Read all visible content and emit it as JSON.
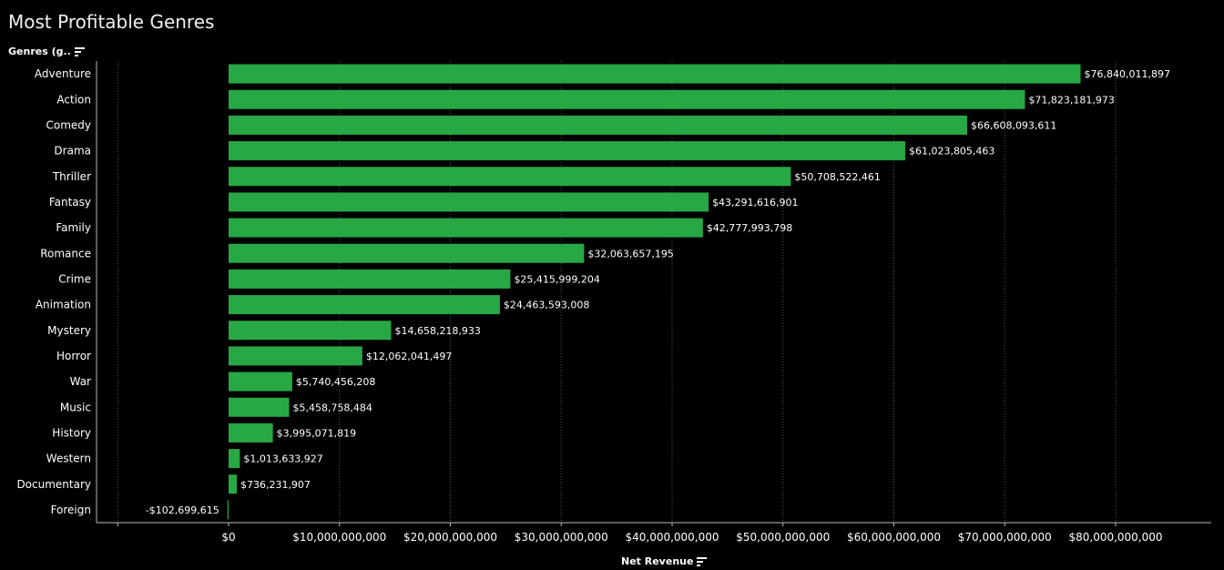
{
  "title": "Most Profitable Genres",
  "y_header": "Genres (g..",
  "x_header": "Net Revenue",
  "colors": {
    "bar": "#28a745",
    "background": "#000000",
    "grid": "#555555",
    "text": "#ffffff"
  },
  "chart_data": {
    "type": "bar",
    "orientation": "horizontal",
    "title": "Most Profitable Genres",
    "xlabel": "Net Revenue",
    "ylabel": "Genres (g..",
    "xlim": [
      -10000000000,
      88000000000
    ],
    "grid": true,
    "categories": [
      "Adventure",
      "Action",
      "Comedy",
      "Drama",
      "Thriller",
      "Fantasy",
      "Family",
      "Romance",
      "Crime",
      "Animation",
      "Mystery",
      "Horror",
      "War",
      "Music",
      "History",
      "Western",
      "Documentary",
      "Foreign"
    ],
    "values": [
      76840011897,
      71823181973,
      66608093611,
      61023805463,
      50708522461,
      43291616901,
      42777993798,
      32063657195,
      25415999204,
      24463593008,
      14658218933,
      12062041497,
      5740456208,
      5458758484,
      3995071819,
      1013633927,
      736231907,
      -102699615
    ],
    "data_labels": [
      "$76,840,011,897",
      "$71,823,181,973",
      "$66,608,093,611",
      "$61,023,805,463",
      "$50,708,522,461",
      "$43,291,616,901",
      "$42,777,993,798",
      "$32,063,657,195",
      "$25,415,999,204",
      "$24,463,593,008",
      "$14,658,218,933",
      "$12,062,041,497",
      "$5,740,456,208",
      "$5,458,758,484",
      "$3,995,071,819",
      "$1,013,633,927",
      "$736,231,907",
      "-$102,699,615"
    ],
    "x_ticks": [
      0,
      10000000000,
      20000000000,
      30000000000,
      40000000000,
      50000000000,
      60000000000,
      70000000000,
      80000000000
    ],
    "x_tick_labels": [
      "$0",
      "$10,000,000,000",
      "$20,000,000,000",
      "$30,000,000,000",
      "$40,000,000,000",
      "$50,000,000,000",
      "$60,000,000,000",
      "$70,000,000,000",
      "$80,000,000,000"
    ]
  }
}
